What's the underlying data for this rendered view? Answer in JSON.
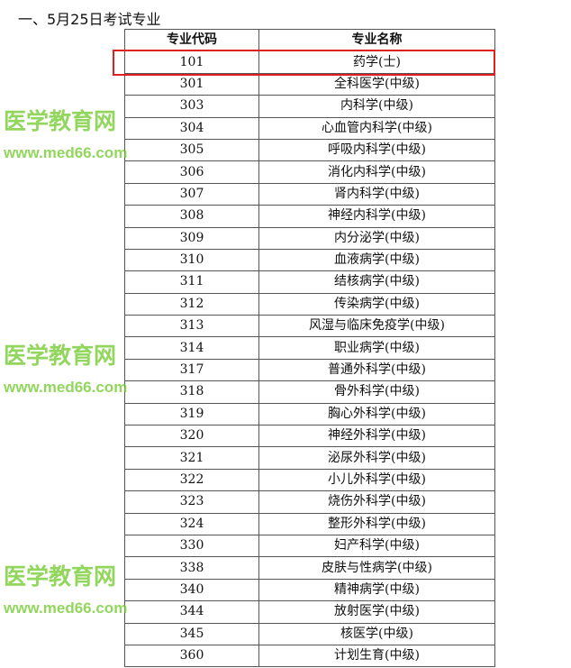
{
  "heading": "一、5月25日考试专业",
  "table": {
    "headers": [
      "专业代码",
      "专业名称"
    ],
    "rows": [
      {
        "code": "101",
        "name": "药学(士)"
      },
      {
        "code": "301",
        "name": "全科医学(中级)"
      },
      {
        "code": "303",
        "name": "内科学(中级)"
      },
      {
        "code": "304",
        "name": "心血管内科学(中级)"
      },
      {
        "code": "305",
        "name": "呼吸内科学(中级)"
      },
      {
        "code": "306",
        "name": "消化内科学(中级)"
      },
      {
        "code": "307",
        "name": "肾内科学(中级)"
      },
      {
        "code": "308",
        "name": "神经内科学(中级)"
      },
      {
        "code": "309",
        "name": "内分泌学(中级)"
      },
      {
        "code": "310",
        "name": "血液病学(中级)"
      },
      {
        "code": "311",
        "name": "结核病学(中级)"
      },
      {
        "code": "312",
        "name": "传染病学(中级)"
      },
      {
        "code": "313",
        "name": "风湿与临床免疫学(中级)"
      },
      {
        "code": "314",
        "name": "职业病学(中级)"
      },
      {
        "code": "317",
        "name": "普通外科学(中级)"
      },
      {
        "code": "318",
        "name": "骨外科学(中级)"
      },
      {
        "code": "319",
        "name": "胸心外科学(中级)"
      },
      {
        "code": "320",
        "name": "神经外科学(中级)"
      },
      {
        "code": "321",
        "name": "泌尿外科学(中级)"
      },
      {
        "code": "322",
        "name": "小儿外科学(中级)"
      },
      {
        "code": "323",
        "name": "烧伤外科学(中级)"
      },
      {
        "code": "324",
        "name": "整形外科学(中级)"
      },
      {
        "code": "330",
        "name": "妇产科学(中级)"
      },
      {
        "code": "338",
        "name": "皮肤与性病学(中级)"
      },
      {
        "code": "340",
        "name": "精神病学(中级)"
      },
      {
        "code": "344",
        "name": "放射医学(中级)"
      },
      {
        "code": "345",
        "name": "核医学(中级)"
      },
      {
        "code": "360",
        "name": "计划生育(中级)"
      }
    ]
  },
  "watermark": {
    "cn": "医学教育网",
    "url": "www.med66.com",
    "color": "#6ec828"
  },
  "highlight_color": "#e02020"
}
